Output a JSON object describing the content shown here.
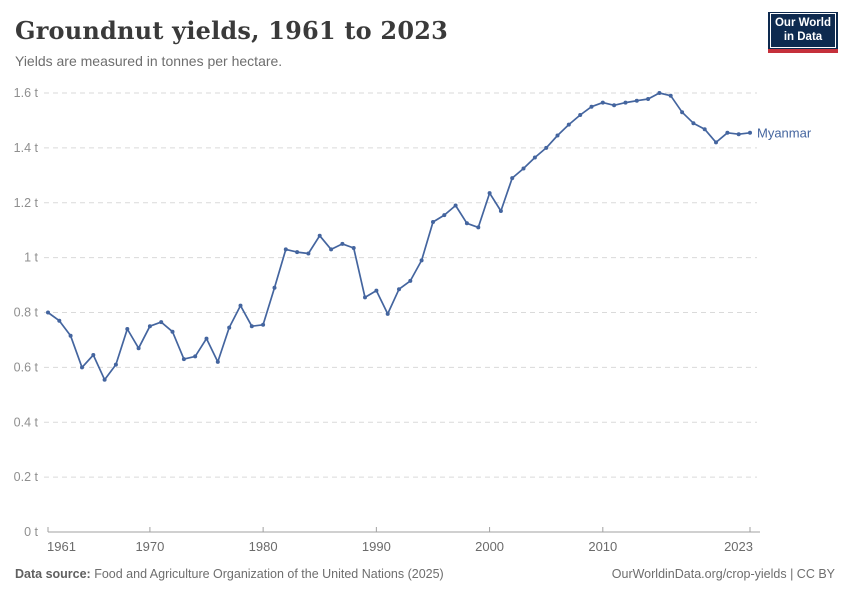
{
  "header": {
    "title": "Groundnut yields, 1961 to 2023",
    "subtitle": "Yields are measured in tonnes per hectare.",
    "logo": {
      "line1": "Our World",
      "line2": "in Data"
    }
  },
  "footer": {
    "source_label": "Data source:",
    "source_text": " Food and Agriculture Organization of the United Nations (2025)",
    "credit": "OurWorldinData.org/crop-yields | CC BY"
  },
  "colors": {
    "line": "#44659F",
    "logo_navy": "#0E2A4F",
    "logo_red": "#C5303B",
    "gridline": "#dadada",
    "axis": "#a1a1a1",
    "x_tick_label": "#6b6b6b",
    "y_tick_label": "#8f8f8f"
  },
  "chart_data": {
    "type": "line",
    "title": "Groundnut yields, 1961 to 2023",
    "subtitle": "Yields are measured in tonnes per hectare.",
    "xlabel": "",
    "ylabel": "tonnes per hectare",
    "unit": "t",
    "xlim": [
      1961,
      2023
    ],
    "ylim": [
      0,
      1.6
    ],
    "grid": "horizontal dashed",
    "legend_position": "end-of-line label",
    "x_ticks": [
      1961,
      1970,
      1980,
      1990,
      2000,
      2010,
      2023
    ],
    "y_ticks": [
      0,
      0.2,
      0.4,
      0.6,
      0.8,
      1,
      1.2,
      1.4,
      1.6
    ],
    "y_tick_labels": [
      "0 t",
      "0.2 t",
      "0.4 t",
      "0.6 t",
      "0.8 t",
      "1 t",
      "1.2 t",
      "1.4 t",
      "1.6 t"
    ],
    "x": [
      1961,
      1962,
      1963,
      1964,
      1965,
      1966,
      1967,
      1968,
      1969,
      1970,
      1971,
      1972,
      1973,
      1974,
      1975,
      1976,
      1977,
      1978,
      1979,
      1980,
      1981,
      1982,
      1983,
      1984,
      1985,
      1986,
      1987,
      1988,
      1989,
      1990,
      1991,
      1992,
      1993,
      1994,
      1995,
      1996,
      1997,
      1998,
      1999,
      2000,
      2001,
      2002,
      2003,
      2004,
      2005,
      2006,
      2007,
      2008,
      2009,
      2010,
      2011,
      2012,
      2013,
      2014,
      2015,
      2016,
      2017,
      2018,
      2019,
      2020,
      2021,
      2022,
      2023
    ],
    "series": [
      {
        "name": "Myanmar",
        "color": "#44659F",
        "values": [
          0.8,
          0.77,
          0.715,
          0.6,
          0.645,
          0.555,
          0.61,
          0.74,
          0.67,
          0.75,
          0.765,
          0.73,
          0.63,
          0.64,
          0.705,
          0.62,
          0.745,
          0.825,
          0.75,
          0.755,
          0.89,
          1.03,
          1.02,
          1.015,
          1.08,
          1.03,
          1.05,
          1.035,
          0.855,
          0.88,
          0.795,
          0.885,
          0.915,
          0.99,
          1.13,
          1.155,
          1.19,
          1.125,
          1.11,
          1.235,
          1.17,
          1.29,
          1.325,
          1.365,
          1.4,
          1.445,
          1.485,
          1.52,
          1.55,
          1.565,
          1.555,
          1.565,
          1.572,
          1.578,
          1.6,
          1.59,
          1.53,
          1.49,
          1.468,
          1.42,
          1.455,
          1.45,
          1.455
        ]
      }
    ]
  }
}
